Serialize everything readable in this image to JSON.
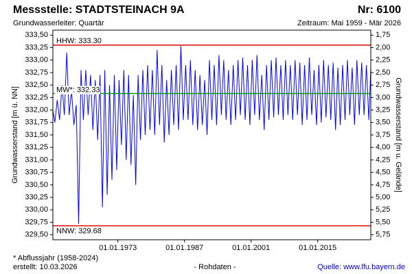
{
  "chart_data": {
    "type": "line",
    "title": "Messstelle: STADTSTEINACH 9A",
    "number": "Nr: 6100",
    "subtitle": "Grundwasserleiter: Quartär",
    "period": "Zeitraum: Mai 1959 - Mär 2026",
    "ylabel": "Grundwasserstand [m ü. NN]",
    "y2label": "Grundwasserstand [m u. Gelände]",
    "footnote": "* Abflussjahr (1958-2024)",
    "created": "erstellt:  10.03.2026",
    "datatype": "- Rohdaten -",
    "source": "Quelle: www.lfu.bayern.de",
    "color": "#0000ff",
    "xlim": [
      "1959-05",
      "2026-03"
    ],
    "xticks": [
      {
        "value": "1973-01-01",
        "label": "01.01.1973"
      },
      {
        "value": "1987-01-01",
        "label": "01.01.1987"
      },
      {
        "value": "2001-01-01",
        "label": "01.01.2001"
      },
      {
        "value": "2015-01-01",
        "label": "01.01.2015"
      }
    ],
    "ylim": [
      329.4,
      333.6
    ],
    "yticks": [
      {
        "value": 329.5,
        "label": "329,50"
      },
      {
        "value": 329.75,
        "label": "329,75"
      },
      {
        "value": 330,
        "label": "330,00"
      },
      {
        "value": 330.25,
        "label": "330,25"
      },
      {
        "value": 330.5,
        "label": "330,50"
      },
      {
        "value": 330.75,
        "label": "330,75"
      },
      {
        "value": 331,
        "label": "331,00"
      },
      {
        "value": 331.25,
        "label": "331,25"
      },
      {
        "value": 331.5,
        "label": "331,50"
      },
      {
        "value": 331.75,
        "label": "331,75"
      },
      {
        "value": 332,
        "label": "332,00"
      },
      {
        "value": 332.25,
        "label": "332,25"
      },
      {
        "value": 332.5,
        "label": "332,50"
      },
      {
        "value": 332.75,
        "label": "332,75"
      },
      {
        "value": 333,
        "label": "333,00"
      },
      {
        "value": 333.25,
        "label": "333,25"
      },
      {
        "value": 333.5,
        "label": "333,50"
      }
    ],
    "y2lim": [
      5.85,
      1.65
    ],
    "y2ticks": [
      {
        "value": 1.75,
        "label": "1,75"
      },
      {
        "value": 2,
        "label": "2,00"
      },
      {
        "value": 2.25,
        "label": "2,25"
      },
      {
        "value": 2.5,
        "label": "2,50"
      },
      {
        "value": 2.75,
        "label": "2,75"
      },
      {
        "value": 3,
        "label": "3,00"
      },
      {
        "value": 3.25,
        "label": "3,25"
      },
      {
        "value": 3.5,
        "label": "3,50"
      },
      {
        "value": 3.75,
        "label": "3,75"
      },
      {
        "value": 4,
        "label": "4,00"
      },
      {
        "value": 4.25,
        "label": "4,25"
      },
      {
        "value": 4.5,
        "label": "4,50"
      },
      {
        "value": 4.75,
        "label": "4,75"
      },
      {
        "value": 5,
        "label": "5,00"
      },
      {
        "value": 5.25,
        "label": "5,25"
      },
      {
        "value": 5.5,
        "label": "5,50"
      },
      {
        "value": 5.75,
        "label": "5,75"
      }
    ],
    "reference_lines": [
      {
        "label": "HHW: 333.30",
        "value": 333.3,
        "color": "#e00000"
      },
      {
        "label": "MW*: 332.33",
        "value": 332.33,
        "color": "#00a000"
      },
      {
        "label": "NNW: 329.68",
        "value": 329.68,
        "color": "#e00000"
      }
    ],
    "x": [
      "1959-05",
      "1959-10",
      "1960-04",
      "1960-10",
      "1961-04",
      "1961-10",
      "1962-04",
      "1962-10",
      "1963-04",
      "1963-10",
      "1964-04",
      "1964-10",
      "1965-04",
      "1965-10",
      "1966-04",
      "1966-10",
      "1967-04",
      "1967-10",
      "1968-04",
      "1968-10",
      "1969-04",
      "1969-10",
      "1970-04",
      "1970-10",
      "1971-04",
      "1971-10",
      "1972-04",
      "1972-10",
      "1973-04",
      "1973-10",
      "1974-04",
      "1974-10",
      "1975-04",
      "1975-10",
      "1976-04",
      "1976-10",
      "1977-04",
      "1977-10",
      "1978-04",
      "1978-10",
      "1979-04",
      "1979-10",
      "1980-04",
      "1980-10",
      "1981-04",
      "1981-10",
      "1982-04",
      "1982-10",
      "1983-04",
      "1983-10",
      "1984-04",
      "1984-10",
      "1985-04",
      "1985-10",
      "1986-04",
      "1986-10",
      "1987-04",
      "1987-10",
      "1988-04",
      "1988-10",
      "1989-04",
      "1989-10",
      "1990-04",
      "1990-10",
      "1991-04",
      "1991-10",
      "1992-04",
      "1992-10",
      "1993-04",
      "1993-10",
      "1994-04",
      "1994-10",
      "1995-04",
      "1995-10",
      "1996-04",
      "1996-10",
      "1997-04",
      "1997-10",
      "1998-04",
      "1998-10",
      "1999-04",
      "1999-10",
      "2000-04",
      "2000-10",
      "2001-04",
      "2001-10",
      "2002-04",
      "2002-10",
      "2003-04",
      "2003-10",
      "2004-04",
      "2004-10",
      "2005-04",
      "2005-10",
      "2006-04",
      "2006-10",
      "2007-04",
      "2007-10",
      "2008-04",
      "2008-10",
      "2009-04",
      "2009-10",
      "2010-04",
      "2010-10",
      "2011-04",
      "2011-10",
      "2012-04",
      "2012-10",
      "2013-04",
      "2013-10",
      "2014-04",
      "2014-10",
      "2015-04",
      "2015-10",
      "2016-04",
      "2016-10",
      "2017-04",
      "2017-10",
      "2018-04",
      "2018-10",
      "2019-04",
      "2019-10",
      "2020-04",
      "2020-10",
      "2021-04",
      "2021-10",
      "2022-04",
      "2022-10",
      "2023-04",
      "2023-10",
      "2024-04",
      "2024-10",
      "2025-04",
      "2025-10",
      "2026-03"
    ],
    "values": [
      332.0,
      331.75,
      332.2,
      331.8,
      332.5,
      331.9,
      333.15,
      331.9,
      332.4,
      331.7,
      332.1,
      329.72,
      332.8,
      331.8,
      332.8,
      331.9,
      332.7,
      331.6,
      332.6,
      331.4,
      332.7,
      330.05,
      332.8,
      330.3,
      332.5,
      330.6,
      332.7,
      330.8,
      332.6,
      331.3,
      332.8,
      331.0,
      332.7,
      330.9,
      332.3,
      330.5,
      332.7,
      331.4,
      332.8,
      331.5,
      332.9,
      331.6,
      332.8,
      331.5,
      333.2,
      331.7,
      332.9,
      331.35,
      332.6,
      331.5,
      332.8,
      331.7,
      332.9,
      331.6,
      333.28,
      331.8,
      332.9,
      331.8,
      333.0,
      331.7,
      332.8,
      331.6,
      332.7,
      331.7,
      332.6,
      331.5,
      333.0,
      331.8,
      332.9,
      331.7,
      333.1,
      331.9,
      333.0,
      331.8,
      332.8,
      331.7,
      332.9,
      331.8,
      333.0,
      331.9,
      333.05,
      331.8,
      332.9,
      331.7,
      333.0,
      331.9,
      333.1,
      331.8,
      332.7,
      331.6,
      332.9,
      331.8,
      333.0,
      331.85,
      333.05,
      331.9,
      332.9,
      331.8,
      333.0,
      331.9,
      332.9,
      331.8,
      333.0,
      331.9,
      332.95,
      331.7,
      332.9,
      331.8,
      333.05,
      331.9,
      332.8,
      331.7,
      332.9,
      331.75,
      333.0,
      331.85,
      332.9,
      331.8,
      332.95,
      331.6,
      332.85,
      331.7,
      332.9,
      331.8,
      333.0,
      331.9,
      332.85,
      331.7,
      333.0,
      331.9,
      332.95,
      331.9,
      332.9,
      331.8,
      332.85
    ]
  }
}
